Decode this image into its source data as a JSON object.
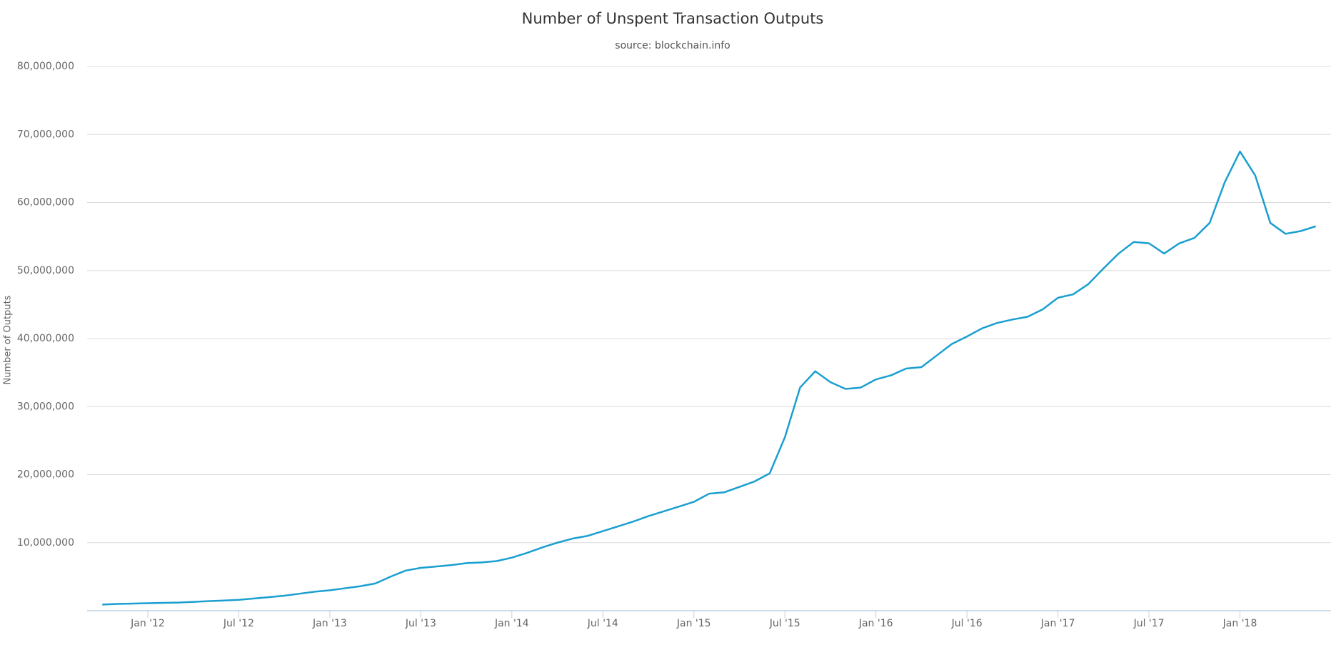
{
  "chart_data": {
    "type": "line",
    "title": "Number of Unspent Transaction Outputs",
    "subtitle": "source: blockchain.info",
    "y_label": "Number of Outputs",
    "color": "#1a9fd0",
    "x": [
      "2011-10",
      "2011-11",
      "2011-12",
      "2012-01",
      "2012-02",
      "2012-03",
      "2012-04",
      "2012-05",
      "2012-06",
      "2012-07",
      "2012-08",
      "2012-09",
      "2012-10",
      "2012-11",
      "2012-12",
      "2013-01",
      "2013-02",
      "2013-03",
      "2013-04",
      "2013-05",
      "2013-06",
      "2013-07",
      "2013-08",
      "2013-09",
      "2013-10",
      "2013-11",
      "2013-12",
      "2014-01",
      "2014-02",
      "2014-03",
      "2014-04",
      "2014-05",
      "2014-06",
      "2014-07",
      "2014-08",
      "2014-09",
      "2014-10",
      "2014-11",
      "2014-12",
      "2015-01",
      "2015-02",
      "2015-03",
      "2015-04",
      "2015-05",
      "2015-06",
      "2015-07",
      "2015-08",
      "2015-09",
      "2015-10",
      "2015-11",
      "2015-12",
      "2016-01",
      "2016-02",
      "2016-03",
      "2016-04",
      "2016-05",
      "2016-06",
      "2016-07",
      "2016-08",
      "2016-09",
      "2016-10",
      "2016-11",
      "2016-12",
      "2017-01",
      "2017-02",
      "2017-03",
      "2017-04",
      "2017-05",
      "2017-06",
      "2017-07",
      "2017-08",
      "2017-09",
      "2017-10",
      "2017-11",
      "2017-12",
      "2018-01",
      "2018-02",
      "2018-03",
      "2018-04",
      "2018-05",
      "2018-06"
    ],
    "values": [
      900000,
      1000000,
      1050000,
      1100000,
      1150000,
      1200000,
      1300000,
      1400000,
      1500000,
      1600000,
      1800000,
      2000000,
      2200000,
      2500000,
      2800000,
      3000000,
      3300000,
      3600000,
      4000000,
      5000000,
      5900000,
      6300000,
      6500000,
      6700000,
      7000000,
      7100000,
      7300000,
      7800000,
      8500000,
      9300000,
      10000000,
      10600000,
      11000000,
      11700000,
      12400000,
      13100000,
      13900000,
      14600000,
      15300000,
      16000000,
      17200000,
      17400000,
      18200000,
      19000000,
      20200000,
      25500000,
      32800000,
      35200000,
      33600000,
      32600000,
      32800000,
      34000000,
      34600000,
      35600000,
      35800000,
      37500000,
      39200000,
      40300000,
      41500000,
      42300000,
      42800000,
      43200000,
      44300000,
      46000000,
      46500000,
      48000000,
      50300000,
      52500000,
      54200000,
      54000000,
      52500000,
      54000000,
      54800000,
      57000000,
      63000000,
      67500000,
      64000000,
      57000000,
      55400000,
      55800000,
      56500000
    ],
    "xlim": [
      "2011-09",
      "2018-07"
    ],
    "xticks": [
      {
        "value": "2012-01",
        "label": "Jan '12"
      },
      {
        "value": "2012-07",
        "label": "Jul '12"
      },
      {
        "value": "2013-01",
        "label": "Jan '13"
      },
      {
        "value": "2013-07",
        "label": "Jul '13"
      },
      {
        "value": "2014-01",
        "label": "Jan '14"
      },
      {
        "value": "2014-07",
        "label": "Jul '14"
      },
      {
        "value": "2015-01",
        "label": "Jan '15"
      },
      {
        "value": "2015-07",
        "label": "Jul '15"
      },
      {
        "value": "2016-01",
        "label": "Jan '16"
      },
      {
        "value": "2016-07",
        "label": "Jul '16"
      },
      {
        "value": "2017-01",
        "label": "Jan '17"
      },
      {
        "value": "2017-07",
        "label": "Jul '17"
      },
      {
        "value": "2018-01",
        "label": "Jan '18"
      }
    ],
    "ylim": [
      0,
      80000000
    ],
    "yticks": [
      {
        "value": 10000000,
        "label": "10,000,000"
      },
      {
        "value": 20000000,
        "label": "20,000,000"
      },
      {
        "value": 30000000,
        "label": "30,000,000"
      },
      {
        "value": 40000000,
        "label": "40,000,000"
      },
      {
        "value": 50000000,
        "label": "50,000,000"
      },
      {
        "value": 60000000,
        "label": "60,000,000"
      },
      {
        "value": 70000000,
        "label": "70,000,000"
      },
      {
        "value": 80000000,
        "label": "80,000,000"
      }
    ],
    "grid": true
  }
}
